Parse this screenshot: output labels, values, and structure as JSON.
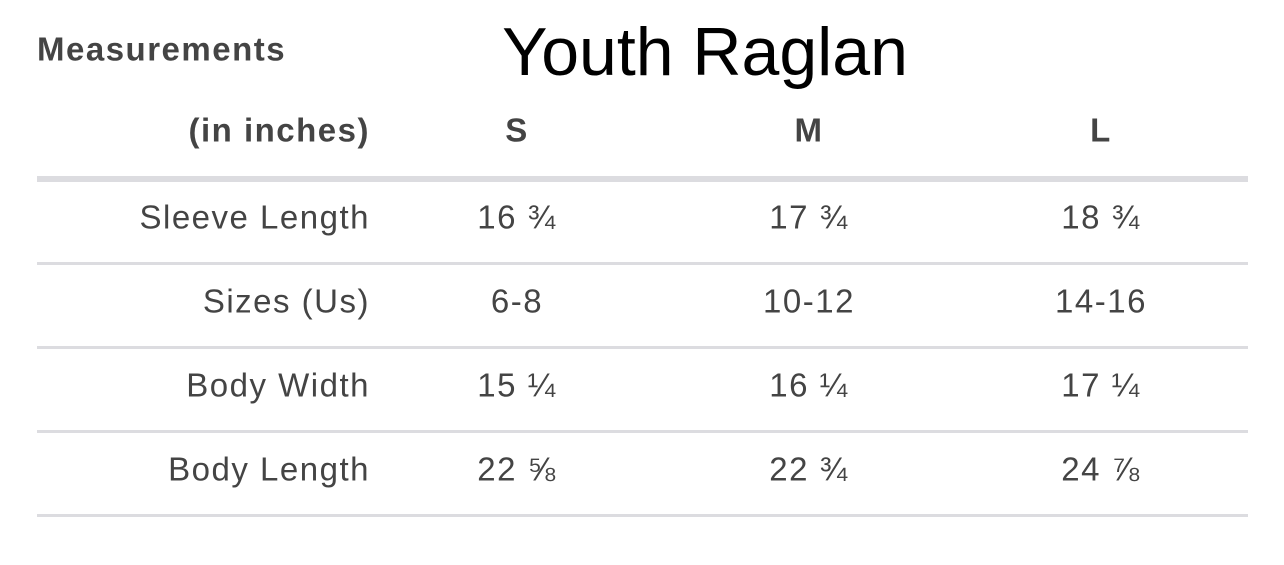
{
  "header": {
    "label": "Measurements",
    "title": "Youth Raglan"
  },
  "table": {
    "columns": [
      "(in inches)",
      "S",
      "M",
      "L"
    ],
    "rows": [
      [
        "Sleeve Length",
        "16 ¾",
        "17 ¾",
        "18 ¾"
      ],
      [
        "Sizes (Us)",
        "6-8",
        "10-12",
        "14-16"
      ],
      [
        "Body Width",
        "15 ¼",
        "16 ¼",
        "17 ¼"
      ],
      [
        "Body Length",
        "22 ⅝",
        "22 ¾",
        "24 ⅞"
      ]
    ]
  }
}
